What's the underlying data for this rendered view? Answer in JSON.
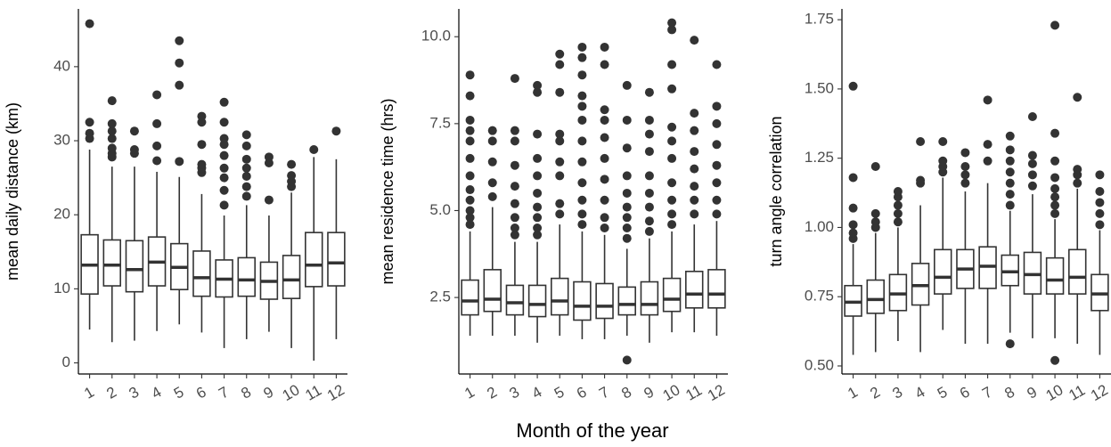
{
  "x_axis_title": "Month of the year",
  "chart_data": [
    {
      "type": "box",
      "ylabel": "mean daily distance (km)",
      "categories": [
        "1",
        "2",
        "3",
        "4",
        "5",
        "6",
        "7",
        "8",
        "9",
        "10",
        "11",
        "12"
      ],
      "ylim": [
        -1.5,
        47.8
      ],
      "yticks": [
        0,
        10,
        20,
        30,
        40
      ],
      "color": "#333333",
      "boxes": [
        {
          "low": 4.5,
          "q1": 9.3,
          "median": 13.2,
          "q3": 17.3,
          "high": 28.8,
          "outliers": [
            30.3,
            31.0,
            32.5,
            45.8
          ]
        },
        {
          "low": 2.8,
          "q1": 10.4,
          "median": 13.2,
          "q3": 16.6,
          "high": 26.5,
          "outliers": [
            27.8,
            28.3,
            29.0,
            30.3,
            31.3,
            32.3,
            35.4
          ]
        },
        {
          "low": 3.0,
          "q1": 9.6,
          "median": 12.6,
          "q3": 16.5,
          "high": 26.5,
          "outliers": [
            28.3,
            28.8,
            31.3
          ]
        },
        {
          "low": 4.3,
          "q1": 10.4,
          "median": 13.6,
          "q3": 17.0,
          "high": 25.8,
          "outliers": [
            27.3,
            29.3,
            32.3,
            36.2
          ]
        },
        {
          "low": 5.2,
          "q1": 9.9,
          "median": 12.9,
          "q3": 16.1,
          "high": 25.1,
          "outliers": [
            27.2,
            37.5,
            40.5,
            43.5
          ]
        },
        {
          "low": 4.1,
          "q1": 9.0,
          "median": 11.5,
          "q3": 15.1,
          "high": 22.8,
          "outliers": [
            25.7,
            26.3,
            26.8,
            29.5,
            32.5,
            33.3
          ]
        },
        {
          "low": 2.0,
          "q1": 8.9,
          "median": 11.3,
          "q3": 13.9,
          "high": 19.9,
          "outliers": [
            21.3,
            23.3,
            25.0,
            26.3,
            28.0,
            29.5,
            30.3,
            32.5,
            35.2
          ]
        },
        {
          "low": 3.2,
          "q1": 9.0,
          "median": 11.2,
          "q3": 14.2,
          "high": 21.3,
          "outliers": [
            22.5,
            23.8,
            25.2,
            26.3,
            27.5,
            29.3,
            30.8
          ]
        },
        {
          "low": 4.2,
          "q1": 8.6,
          "median": 11.0,
          "q3": 13.6,
          "high": 19.9,
          "outliers": [
            22.0,
            27.0,
            27.8
          ]
        },
        {
          "low": 2.0,
          "q1": 8.7,
          "median": 11.2,
          "q3": 14.5,
          "high": 23.0,
          "outliers": [
            23.8,
            24.5,
            25.3,
            26.8
          ]
        },
        {
          "low": 0.3,
          "q1": 10.3,
          "median": 13.2,
          "q3": 17.6,
          "high": 27.8,
          "outliers": [
            28.8
          ]
        },
        {
          "low": 3.2,
          "q1": 10.4,
          "median": 13.5,
          "q3": 17.6,
          "high": 27.5,
          "outliers": [
            31.3
          ]
        }
      ]
    },
    {
      "type": "box",
      "ylabel": "mean residence time (hrs)",
      "categories": [
        "1",
        "2",
        "3",
        "4",
        "5",
        "6",
        "7",
        "8",
        "9",
        "10",
        "11",
        "12"
      ],
      "ylim": [
        0.3,
        10.8
      ],
      "yticks": [
        2.5,
        {
          "value": 5,
          "label": "5.0"
        },
        7.5,
        {
          "value": 10,
          "label": "10.0"
        }
      ],
      "color": "#333333",
      "boxes": [
        {
          "low": 1.4,
          "q1": 2.0,
          "median": 2.4,
          "q3": 3.0,
          "high": 4.4,
          "outliers": [
            4.6,
            4.8,
            5.0,
            5.3,
            5.6,
            6.0,
            6.5,
            7.0,
            7.3,
            7.6,
            8.3,
            8.9
          ]
        },
        {
          "low": 1.4,
          "q1": 2.1,
          "median": 2.45,
          "q3": 3.3,
          "high": 5.1,
          "outliers": [
            5.4,
            5.8,
            6.4,
            7.0,
            7.3
          ]
        },
        {
          "low": 1.4,
          "q1": 2.0,
          "median": 2.35,
          "q3": 2.85,
          "high": 4.1,
          "outliers": [
            4.3,
            4.5,
            4.8,
            5.2,
            5.7,
            6.3,
            7.0,
            7.3,
            8.8
          ]
        },
        {
          "low": 1.2,
          "q1": 1.95,
          "median": 2.3,
          "q3": 2.85,
          "high": 4.1,
          "outliers": [
            4.3,
            4.5,
            4.8,
            5.1,
            5.5,
            6.0,
            6.5,
            7.2,
            8.4,
            8.6
          ]
        },
        {
          "low": 1.4,
          "q1": 2.0,
          "median": 2.4,
          "q3": 3.05,
          "high": 4.6,
          "outliers": [
            4.9,
            5.2,
            6.0,
            6.4,
            7.0,
            7.2,
            8.4,
            9.2,
            9.5
          ]
        },
        {
          "low": 1.3,
          "q1": 1.85,
          "median": 2.25,
          "q3": 2.95,
          "high": 4.4,
          "outliers": [
            4.6,
            4.9,
            5.3,
            5.8,
            6.4,
            7.0,
            7.6,
            8.0,
            8.3,
            8.9,
            9.4,
            9.7
          ]
        },
        {
          "low": 1.3,
          "q1": 1.9,
          "median": 2.25,
          "q3": 2.9,
          "high": 4.3,
          "outliers": [
            4.5,
            4.8,
            5.3,
            5.9,
            6.5,
            7.1,
            7.6,
            7.9,
            9.2,
            9.7
          ]
        },
        {
          "low": 1.4,
          "q1": 2.0,
          "median": 2.3,
          "q3": 2.8,
          "high": 3.9,
          "outliers": [
            0.7,
            4.2,
            4.5,
            4.8,
            5.1,
            5.5,
            6.0,
            6.8,
            7.6,
            8.6
          ]
        },
        {
          "low": 1.2,
          "q1": 2.0,
          "median": 2.3,
          "q3": 2.95,
          "high": 4.2,
          "outliers": [
            4.4,
            4.7,
            5.1,
            5.5,
            6.0,
            6.7,
            7.2,
            7.6,
            8.4
          ]
        },
        {
          "low": 1.5,
          "q1": 2.1,
          "median": 2.45,
          "q3": 3.05,
          "high": 4.4,
          "outliers": [
            4.6,
            4.9,
            5.3,
            5.8,
            6.5,
            7.0,
            7.4,
            8.5,
            9.2,
            10.2,
            10.4
          ]
        },
        {
          "low": 1.5,
          "q1": 2.2,
          "median": 2.6,
          "q3": 3.25,
          "high": 4.6,
          "outliers": [
            4.9,
            5.3,
            5.7,
            6.2,
            6.7,
            7.3,
            7.8,
            9.9
          ]
        },
        {
          "low": 1.4,
          "q1": 2.2,
          "median": 2.6,
          "q3": 3.3,
          "high": 4.7,
          "outliers": [
            4.9,
            5.3,
            5.8,
            6.3,
            6.9,
            7.5,
            8.0,
            9.2
          ]
        }
      ]
    },
    {
      "type": "box",
      "ylabel": "turn angle correlation",
      "categories": [
        "1",
        "2",
        "3",
        "4",
        "5",
        "6",
        "7",
        "8",
        "9",
        "10",
        "11",
        "12"
      ],
      "ylim": [
        0.471,
        1.789
      ],
      "yticks": [
        {
          "value": 0.5,
          "label": "0.50"
        },
        0.75,
        {
          "value": 1,
          "label": "1.00"
        },
        1.25,
        {
          "value": 1.5,
          "label": "1.50"
        },
        1.75
      ],
      "color": "#333333",
      "boxes": [
        {
          "low": 0.54,
          "q1": 0.68,
          "median": 0.73,
          "q3": 0.79,
          "high": 0.94,
          "outliers": [
            0.96,
            0.98,
            1.01,
            1.07,
            1.18,
            1.51
          ]
        },
        {
          "low": 0.55,
          "q1": 0.69,
          "median": 0.74,
          "q3": 0.81,
          "high": 0.98,
          "outliers": [
            1.0,
            1.02,
            1.05,
            1.22
          ]
        },
        {
          "low": 0.59,
          "q1": 0.7,
          "median": 0.76,
          "q3": 0.83,
          "high": 1.0,
          "outliers": [
            1.02,
            1.05,
            1.08,
            1.11,
            1.13
          ]
        },
        {
          "low": 0.55,
          "q1": 0.72,
          "median": 0.79,
          "q3": 0.87,
          "high": 1.08,
          "outliers": [
            1.16,
            1.17,
            1.31
          ]
        },
        {
          "low": 0.63,
          "q1": 0.76,
          "median": 0.82,
          "q3": 0.92,
          "high": 1.18,
          "outliers": [
            1.2,
            1.22,
            1.24,
            1.31
          ]
        },
        {
          "low": 0.58,
          "q1": 0.78,
          "median": 0.85,
          "q3": 0.92,
          "high": 1.13,
          "outliers": [
            1.16,
            1.19,
            1.22,
            1.27
          ]
        },
        {
          "low": 0.58,
          "q1": 0.78,
          "median": 0.86,
          "q3": 0.93,
          "high": 1.16,
          "outliers": [
            1.24,
            1.3,
            1.46
          ]
        },
        {
          "low": 0.62,
          "q1": 0.79,
          "median": 0.84,
          "q3": 0.9,
          "high": 1.06,
          "outliers": [
            0.58,
            1.08,
            1.12,
            1.16,
            1.2,
            1.24,
            1.28,
            1.33
          ]
        },
        {
          "low": 0.6,
          "q1": 0.76,
          "median": 0.83,
          "q3": 0.91,
          "high": 1.12,
          "outliers": [
            1.15,
            1.19,
            1.23,
            1.26,
            1.4
          ]
        },
        {
          "low": 0.6,
          "q1": 0.76,
          "median": 0.81,
          "q3": 0.89,
          "high": 1.03,
          "outliers": [
            0.52,
            1.05,
            1.08,
            1.11,
            1.14,
            1.18,
            1.24,
            1.34,
            1.73
          ]
        },
        {
          "low": 0.58,
          "q1": 0.76,
          "median": 0.82,
          "q3": 0.92,
          "high": 1.14,
          "outliers": [
            1.16,
            1.19,
            1.21,
            1.47
          ]
        },
        {
          "low": 0.54,
          "q1": 0.7,
          "median": 0.76,
          "q3": 0.83,
          "high": 0.99,
          "outliers": [
            1.01,
            1.05,
            1.09,
            1.13,
            1.19
          ]
        }
      ]
    }
  ]
}
